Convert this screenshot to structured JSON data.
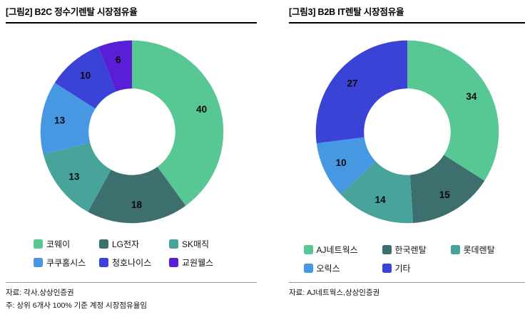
{
  "footers": {
    "left_source": "자료: 각사,상상인증권",
    "left_note": "주: 상위 6개사 100% 기준 계정 시장점유율임",
    "right_source": "자료: AJ네트웍스,상상인증권"
  },
  "chart_data": [
    {
      "type": "pie",
      "subtype": "donut",
      "title": "[그림2] B2C 정수기렌탈 시장점유율",
      "labels": [
        "코웨이",
        "LG전자",
        "SK매직",
        "쿠쿠홈시스",
        "청호나이스",
        "교원웰스"
      ],
      "values": [
        40,
        18,
        13,
        13,
        10,
        6
      ],
      "colors": [
        "#57C794",
        "#3E6F6F",
        "#48A39B",
        "#4698E3",
        "#3A43D6",
        "#5A1ED6"
      ],
      "unit": "%",
      "start_angle_deg": 0,
      "direction": "clockwise",
      "donut_hole_ratio": 0.47,
      "legend_position": "bottom"
    },
    {
      "type": "pie",
      "subtype": "donut",
      "title": "[그림3] B2B IT렌탈 시장점유율",
      "labels": [
        "AJ네트웍스",
        "한국렌탈",
        "롯데렌탈",
        "오릭스",
        "기타"
      ],
      "values": [
        34,
        15,
        14,
        10,
        27
      ],
      "colors": [
        "#57C794",
        "#3E6F6F",
        "#48A39B",
        "#4698E3",
        "#3A43D6"
      ],
      "unit": "%",
      "start_angle_deg": 0,
      "direction": "clockwise",
      "donut_hole_ratio": 0.47,
      "legend_position": "bottom"
    }
  ]
}
